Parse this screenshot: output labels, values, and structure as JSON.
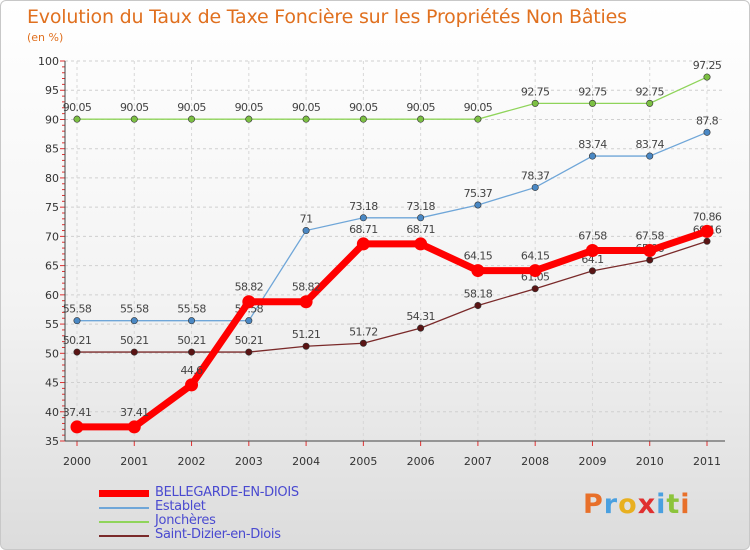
{
  "chart_data": {
    "type": "line",
    "title": "Evolution du Taux de Taxe Foncière sur les Propriétés Non Bâties",
    "subtitle": "(en %)",
    "xlabel": "",
    "ylabel": "(en %)",
    "ylim": [
      35,
      100
    ],
    "y_ticks": [
      35,
      40,
      45,
      50,
      55,
      60,
      65,
      70,
      75,
      80,
      85,
      90,
      95,
      100
    ],
    "categories": [
      "2000",
      "2001",
      "2002",
      "2003",
      "2004",
      "2005",
      "2006",
      "2007",
      "2008",
      "2009",
      "2010",
      "2011"
    ],
    "series": [
      {
        "name": "Jonchères",
        "color": "#8fd45a",
        "marker": "#7cc043",
        "values": [
          90.05,
          90.05,
          90.05,
          90.05,
          90.05,
          90.05,
          90.05,
          90.05,
          92.75,
          92.75,
          92.75,
          97.25
        ],
        "labels": [
          "90.05",
          "90.05",
          "90.05",
          "90.05",
          "90.05",
          "90.05",
          "90.05",
          "90.05",
          "92.75",
          "92.75",
          "92.75",
          "97.25"
        ]
      },
      {
        "name": "Establet",
        "color": "#6fa6d8",
        "marker": "#4a88c4",
        "values": [
          55.58,
          55.58,
          55.58,
          55.58,
          71,
          73.18,
          73.18,
          75.37,
          78.37,
          83.74,
          83.74,
          87.8
        ],
        "labels": [
          "55.58",
          "55.58",
          "55.58",
          "55.58",
          "71",
          "73.18",
          "73.18",
          "75.37",
          "78.37",
          "83.74",
          "83.74",
          "87.8"
        ]
      },
      {
        "name": "Saint-Dizier-en-Diois",
        "color": "#7a2a2a",
        "marker": "#5a1414",
        "values": [
          50.21,
          50.21,
          50.21,
          50.21,
          51.21,
          51.72,
          54.31,
          58.18,
          61.05,
          64.1,
          65.96,
          69.16
        ],
        "labels": [
          "50.21",
          "50.21",
          "50.21",
          "50.21",
          "51.21",
          "51.72",
          "54.31",
          "58.18",
          "61.05",
          "64.1",
          "65.96",
          "69.16"
        ]
      },
      {
        "name": "BELLEGARDE-EN-DIOIS",
        "color": "#ff0000",
        "marker": "#ff0000",
        "values": [
          37.41,
          37.41,
          44.6,
          58.82,
          58.82,
          68.71,
          68.71,
          64.15,
          64.15,
          67.58,
          67.58,
          70.86
        ],
        "labels": [
          "37.41",
          "37.41",
          "44.6",
          "58.82",
          "58.82",
          "68.71",
          "68.71",
          "64.15",
          "64.15",
          "67.58",
          "67.58",
          "70.86"
        ]
      }
    ],
    "legend": [
      "BELLEGARDE-EN-DIOIS",
      "Establet",
      "Jonchères",
      "Saint-Dizier-en-Diois"
    ]
  },
  "legend_items": [
    {
      "label": "BELLEGARDE-EN-DIOIS",
      "color": "#ff0000",
      "thick": true
    },
    {
      "label": "Establet",
      "color": "#6fa6d8",
      "thick": false
    },
    {
      "label": "Jonchères",
      "color": "#8fd45a",
      "thick": false
    },
    {
      "label": "Saint-Dizier-en-Diois",
      "color": "#7a2a2a",
      "thick": false
    }
  ],
  "logo": {
    "text": "Proxiti",
    "letter_colors": [
      "#e8702a",
      "#4aa0e0",
      "#e8b020",
      "#e03030",
      "#4aa0e0",
      "#8cc43c",
      "#e8702a"
    ]
  }
}
